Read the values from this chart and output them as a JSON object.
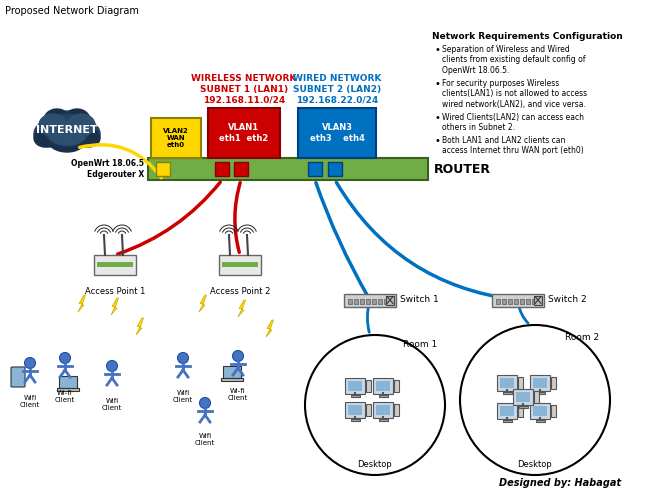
{
  "title": "Proposed Network Diagram",
  "background_color": "#ffffff",
  "figsize": [
    6.61,
    4.99
  ],
  "dpi": 100,
  "wireless_label": "WIRELESS NETWORK\nSUBNET 1 (LAN1)\n192.168.11.0/24",
  "wired_label": "WIRED NETWORK\nSUBNET 2 (LAN2)\n192.168.22.0/24",
  "wireless_label_color": "#cc0000",
  "wired_label_color": "#0070c0",
  "router_label": "ROUTER",
  "router_body_color": "#70ad47",
  "router_body_outline": "#3a5f1e",
  "vlan2_color": "#ffd700",
  "vlan1_color": "#cc0000",
  "vlan3_color": "#0070c0",
  "openwrt_label": "OpenWrt 18.06.5\nEdgerouter X",
  "internet_text": "INTERNET",
  "designed_by": "Designed by: Habagat",
  "req_title": "Network Requirements Configuration",
  "req_bullets": [
    "Separation of Wireless and Wired\nclients from existing default config of\nOpenWrt 18.06.5.",
    "For security purposes Wireless\nclients(LAN1) is not allowed to access\nwired network(LAN2), and vice versa.",
    "Wired Clients(LAN2) can access each\nothers in Subnet 2.",
    "Both LAN1 and LAN2 clients can\naccess Internet thru WAN port (eth0)"
  ],
  "switch1_label": "Switch 1",
  "switch2_label": "Switch 2",
  "room1_label": "Room 1",
  "room2_label": "Room 2",
  "desktop_label": "Desktop",
  "ap1_label": "Access Point 1",
  "ap2_label": "Access Point 2"
}
